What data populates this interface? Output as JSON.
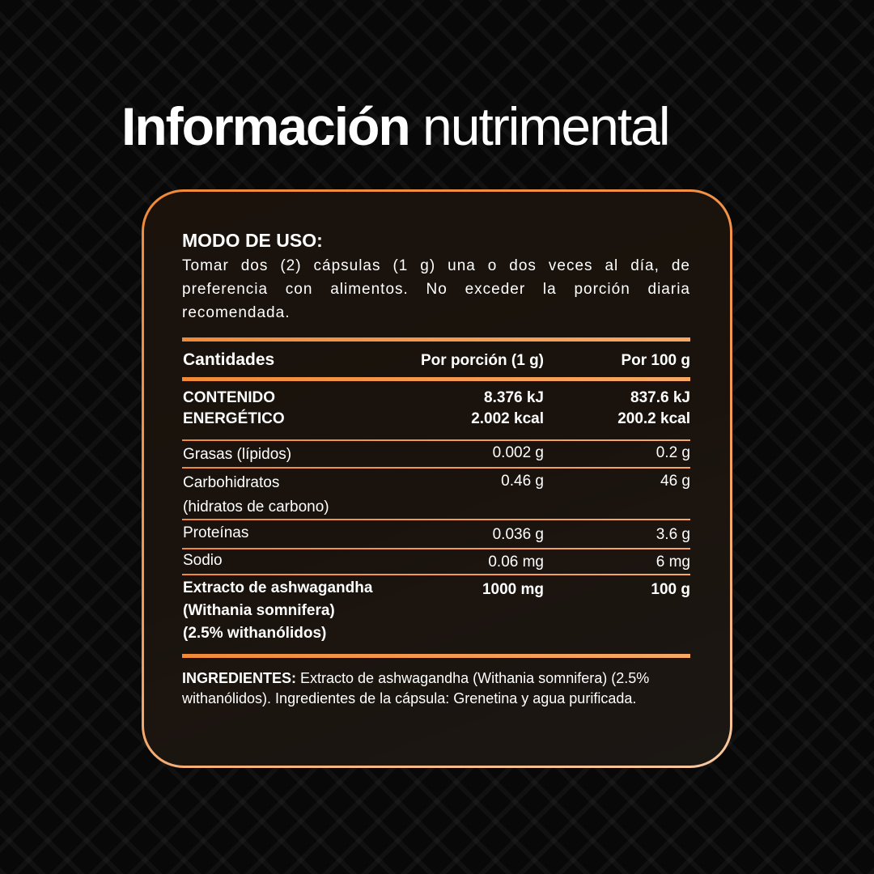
{
  "title": {
    "bold": "Información",
    "regular": "nutrimental"
  },
  "usage": {
    "heading": "MODO DE USO:",
    "text": "Tomar dos (2) cápsulas (1 g) una o dos veces al día, de preferencia con alimentos. No exceder la porción diaria recomendada."
  },
  "table": {
    "headers": [
      "Cantidades",
      "Por porción (1 g)",
      "Por 100 g"
    ],
    "rows": [
      {
        "label": [
          "CONTENIDO",
          "ENERGÉTICO"
        ],
        "per_serving": [
          "8.376 kJ",
          "2.002 kcal"
        ],
        "per_100g": [
          "837.6 kJ",
          "200.2 kcal"
        ]
      },
      {
        "label": [
          "Grasas (lípidos)"
        ],
        "per_serving": [
          "0.002 g"
        ],
        "per_100g": [
          "0.2 g"
        ]
      },
      {
        "label": [
          "Carbohidratos",
          "(hidratos de carbono)"
        ],
        "per_serving": [
          "0.46 g"
        ],
        "per_100g": [
          "46 g"
        ]
      },
      {
        "label": [
          "Proteínas"
        ],
        "per_serving": [
          "0.036 g"
        ],
        "per_100g": [
          "3.6 g"
        ]
      },
      {
        "label": [
          "Sodio"
        ],
        "per_serving": [
          "0.06 mg"
        ],
        "per_100g": [
          "6 mg"
        ]
      },
      {
        "label": [
          "Extracto de ashwagandha",
          "(Withania somnifera)",
          "(2.5% withanólidos)"
        ],
        "per_serving": [
          "1000 mg"
        ],
        "per_100g": [
          "100 g"
        ]
      }
    ]
  },
  "ingredients": {
    "label": "INGREDIENTES:",
    "text": " Extracto de ashwagandha (Withania somnifera) (2.5% withanólidos). Ingredientes de la cápsula: Grenetina y agua purificada."
  },
  "colors": {
    "accent": "#f08a38",
    "background": "#080808"
  }
}
